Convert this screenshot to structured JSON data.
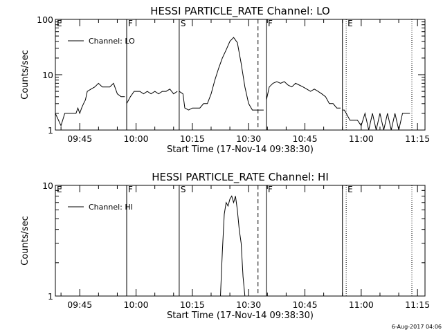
{
  "stamp": "6-Aug-2017 04:06",
  "chart_data": [
    {
      "type": "line",
      "title": "HESSI PARTICLE_RATE Channel: LO",
      "xlabel": "Start Time (17-Nov-14 09:38:30)",
      "ylabel": "Counts/sec",
      "yscale": "log",
      "ylim": [
        1,
        100
      ],
      "xlim": [
        "09:38:30",
        "11:17:00"
      ],
      "grid": false,
      "legend_position": "top-left",
      "ytick_labels": [
        "1",
        "10",
        "100"
      ],
      "ytick_values": [
        1,
        10,
        100
      ],
      "xtick_labels": [
        "09:45",
        "10:00",
        "10:15",
        "10:30",
        "10:45",
        "11:00",
        "11:15"
      ],
      "events": [
        {
          "label": "E",
          "time": "09:38:30",
          "style": "none"
        },
        {
          "label": "F",
          "time": "09:57:30",
          "style": "solid"
        },
        {
          "label": "S",
          "time": "10:11:30",
          "style": "solid"
        },
        {
          "label": "",
          "time": "10:32:30",
          "style": "dashed"
        },
        {
          "label": "F",
          "time": "10:34:45",
          "style": "solid"
        },
        {
          "label": "",
          "time": "10:55:00",
          "style": "solid"
        },
        {
          "label": "E",
          "time": "10:56:00",
          "style": "dotted"
        },
        {
          "label": "",
          "time": "11:13:30",
          "style": "dotted"
        }
      ],
      "series": [
        {
          "name": "Channel: LO",
          "segments": [
            {
              "x": [
                "09:38:30",
                "09:40:00",
                "09:41:00",
                "09:42:00",
                "09:43:00",
                "09:44:00",
                "09:44:30",
                "09:45:00",
                "09:45:30",
                "09:46:00",
                "09:46:30",
                "09:47:00",
                "09:48:00",
                "09:49:00",
                "09:50:00",
                "09:51:00",
                "09:52:00",
                "09:53:00",
                "09:54:00",
                "09:55:00",
                "09:56:00",
                "09:57:00"
              ],
              "y": [
                2,
                1.2,
                2,
                2,
                2,
                2,
                2.5,
                2,
                2.5,
                3,
                3.5,
                5,
                5.5,
                6,
                7,
                6,
                6,
                6,
                7,
                4.5,
                4,
                4
              ]
            },
            {
              "x": [
                "09:57:30",
                "09:58:30",
                "09:59:30",
                "10:00:00",
                "10:01:00",
                "10:02:00",
                "10:03:00",
                "10:04:00",
                "10:05:00",
                "10:06:00",
                "10:07:00",
                "10:08:00",
                "10:09:00",
                "10:10:00",
                "10:11:00"
              ],
              "y": [
                3,
                4,
                5,
                5,
                5,
                4.5,
                5,
                4.5,
                5,
                4.5,
                5,
                5,
                5.5,
                4.5,
                5
              ]
            },
            {
              "x": [
                "10:11:30",
                "10:12:30",
                "10:13:00",
                "10:14:00",
                "10:15:00",
                "10:16:00",
                "10:17:00",
                "10:18:00",
                "10:19:00",
                "10:20:00",
                "10:21:00",
                "10:22:00",
                "10:23:00",
                "10:24:00",
                "10:25:00",
                "10:26:00",
                "10:27:00",
                "10:28:00",
                "10:29:00",
                "10:30:00",
                "10:31:00",
                "10:32:00",
                "10:33:00",
                "10:34:00"
              ],
              "y": [
                5,
                4.5,
                2.5,
                2.3,
                2.5,
                2.5,
                2.5,
                3,
                3,
                4.5,
                8,
                13,
                20,
                28,
                40,
                47,
                38,
                16,
                6,
                3,
                2.3,
                2.3,
                2.3,
                2.3
              ]
            },
            {
              "x": [
                "10:34:45",
                "10:35:30",
                "10:36:30",
                "10:37:30",
                "10:38:30",
                "10:39:30",
                "10:40:30",
                "10:41:30",
                "10:42:30",
                "10:43:30",
                "10:44:30",
                "10:45:30",
                "10:46:30",
                "10:47:30",
                "10:48:30",
                "10:49:30",
                "10:50:30",
                "10:51:30",
                "10:52:30",
                "10:53:30",
                "10:54:30"
              ],
              "y": [
                3.5,
                6,
                7,
                7.5,
                7,
                7.5,
                6.5,
                6,
                7,
                6.5,
                6,
                5.5,
                5,
                5.5,
                5,
                4.5,
                4,
                3,
                3,
                2.5,
                2.5
              ]
            },
            {
              "x": [
                "10:55:00",
                "10:55:30",
                "10:56:00",
                "10:57:00",
                "10:58:00",
                "10:59:00",
                "11:00:00",
                "11:01:00",
                "11:02:00",
                "11:03:00",
                "11:04:00",
                "11:05:00",
                "11:06:00",
                "11:07:00",
                "11:08:00",
                "11:09:00",
                "11:10:00",
                "11:11:00",
                "11:12:00",
                "11:13:00"
              ],
              "y": [
                2.3,
                2.3,
                2,
                1.5,
                1.5,
                1.5,
                1.2,
                2,
                1,
                2,
                1,
                2,
                1,
                2,
                1,
                2,
                1,
                2,
                2,
                2
              ]
            }
          ]
        }
      ]
    },
    {
      "type": "line",
      "title": "HESSI PARTICLE_RATE Channel: HI",
      "xlabel": "Start Time (17-Nov-14 09:38:30)",
      "ylabel": "Counts/sec",
      "yscale": "log",
      "ylim": [
        1,
        10
      ],
      "xlim": [
        "09:38:30",
        "11:17:00"
      ],
      "grid": false,
      "legend_position": "top-left",
      "ytick_labels": [
        "1",
        "10"
      ],
      "ytick_values": [
        1,
        10
      ],
      "xtick_labels": [
        "09:45",
        "10:00",
        "10:15",
        "10:30",
        "10:45",
        "11:00",
        "11:15"
      ],
      "events": [
        {
          "label": "E",
          "time": "09:38:30",
          "style": "none"
        },
        {
          "label": "F",
          "time": "09:57:30",
          "style": "solid"
        },
        {
          "label": "S",
          "time": "10:11:30",
          "style": "solid"
        },
        {
          "label": "",
          "time": "10:32:30",
          "style": "dashed"
        },
        {
          "label": "F",
          "time": "10:34:45",
          "style": "solid"
        },
        {
          "label": "",
          "time": "10:55:00",
          "style": "solid"
        },
        {
          "label": "E",
          "time": "10:56:00",
          "style": "dotted"
        },
        {
          "label": "",
          "time": "11:13:30",
          "style": "dotted"
        }
      ],
      "series": [
        {
          "name": "Channel: HI",
          "segments": [
            {
              "x": [
                "10:22:30",
                "10:23:00",
                "10:23:30",
                "10:24:00",
                "10:24:30",
                "10:25:00",
                "10:25:30",
                "10:26:00",
                "10:26:30",
                "10:27:00",
                "10:27:30",
                "10:28:00",
                "10:28:30",
                "10:29:00"
              ],
              "y": [
                1,
                2.5,
                5.5,
                7,
                6.5,
                7.5,
                8,
                7,
                8,
                6,
                4,
                3,
                1.5,
                1
              ]
            }
          ]
        }
      ]
    }
  ]
}
